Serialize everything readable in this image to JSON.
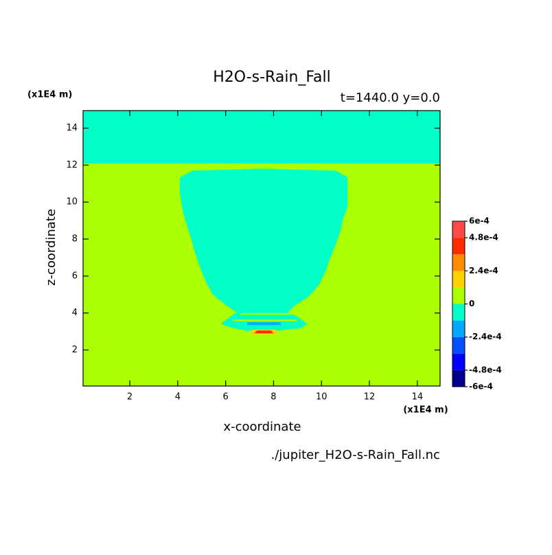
{
  "chart_data": {
    "type": "contour",
    "title": "H2O-s-Rain_Fall",
    "subtitle": "t=1440.0 y=0.0",
    "x_label": "x-coordinate",
    "y_label": "z-coordinate",
    "x_unit": "(x1E4 m)",
    "y_unit": "(x1E4 m)",
    "source": "./jupiter_H2O-s-Rain_Fall.nc",
    "xlim": [
      0.05,
      14.95
    ],
    "ylim": [
      0.05,
      14.95
    ],
    "xticks": [
      2,
      4,
      6,
      8,
      10,
      12,
      14
    ],
    "yticks": [
      2,
      4,
      6,
      8,
      10,
      12,
      14
    ],
    "levels": [
      -0.0006,
      -0.00048,
      -0.00036,
      -0.00024,
      -0.00012,
      0,
      0.00012,
      0.00024,
      0.00036,
      0.00048,
      0.0006
    ],
    "colors": [
      "#00008c",
      "#0000ff",
      "#0050ff",
      "#00a8ff",
      "#00ffc8",
      "#aaff00",
      "#ffd000",
      "#ff8c00",
      "#ff2a00",
      "#ff4a4a"
    ],
    "colorbar_ticks": [
      {
        "value": 0.0006,
        "label": "6e-4"
      },
      {
        "value": 0.00048,
        "label": "4.8e-4"
      },
      {
        "value": 0.00024,
        "label": "2.4e-4"
      },
      0,
      {
        "value": -0.00024,
        "label": "-2.4e-4"
      },
      {
        "value": -0.00048,
        "label": "-4.8e-4"
      },
      {
        "value": -0.0006,
        "label": "-6e-4"
      }
    ],
    "regions": [
      {
        "value": 6e-05,
        "x": [
          0.05,
          14.95,
          14.95,
          0.05
        ],
        "y": [
          0.05,
          0.05,
          14.95,
          14.95
        ]
      },
      {
        "value": -6e-05,
        "x": [
          0.05,
          14.95,
          14.95,
          0.05
        ],
        "y": [
          12.1,
          12.1,
          14.95,
          14.95
        ]
      },
      {
        "value": -6e-05,
        "x": [
          4.09,
          4.6,
          7.46,
          10.6,
          11.09,
          11.09,
          10.89,
          10.8,
          10.6,
          10.37,
          10.17,
          9.89,
          9.46,
          8.89,
          8.6,
          9.03,
          9.4,
          9.17,
          8.6,
          8.03,
          6.89,
          6.31,
          5.8,
          6.17,
          6.46,
          6.03,
          5.46,
          5.17,
          4.94,
          4.74,
          4.54,
          4.31,
          4.17,
          4.09
        ],
        "y": [
          11.33,
          11.7,
          11.81,
          11.7,
          11.33,
          9.78,
          9.04,
          8.48,
          7.74,
          7.0,
          6.26,
          5.52,
          4.89,
          4.41,
          4.04,
          3.78,
          3.41,
          3.19,
          3.11,
          3.04,
          3.04,
          3.19,
          3.41,
          3.78,
          4.04,
          4.41,
          5.0,
          5.7,
          6.44,
          7.19,
          8.11,
          9.04,
          9.78,
          10.52
        ]
      },
      {
        "value": 6e-05,
        "x": [
          6.6,
          8.8,
          8.8,
          6.6
        ],
        "y": [
          3.9,
          3.9,
          4.0,
          4.0
        ]
      },
      {
        "value": 6e-05,
        "x": [
          6.3,
          9.0,
          9.0,
          6.3
        ],
        "y": [
          3.55,
          3.55,
          3.65,
          3.65
        ]
      },
      {
        "value": -0.00018,
        "x": [
          6.9,
          8.3,
          8.3,
          6.9
        ],
        "y": [
          3.35,
          3.35,
          3.5,
          3.5
        ]
      },
      {
        "value": 0.00018,
        "x": [
          7.0,
          8.2,
          8.1,
          7.1
        ],
        "y": [
          2.85,
          2.85,
          3.1,
          3.1
        ]
      },
      {
        "value": 0.00042,
        "x": [
          7.2,
          8.0,
          7.9,
          7.3
        ],
        "y": [
          2.9,
          2.9,
          3.05,
          3.05
        ]
      }
    ]
  }
}
